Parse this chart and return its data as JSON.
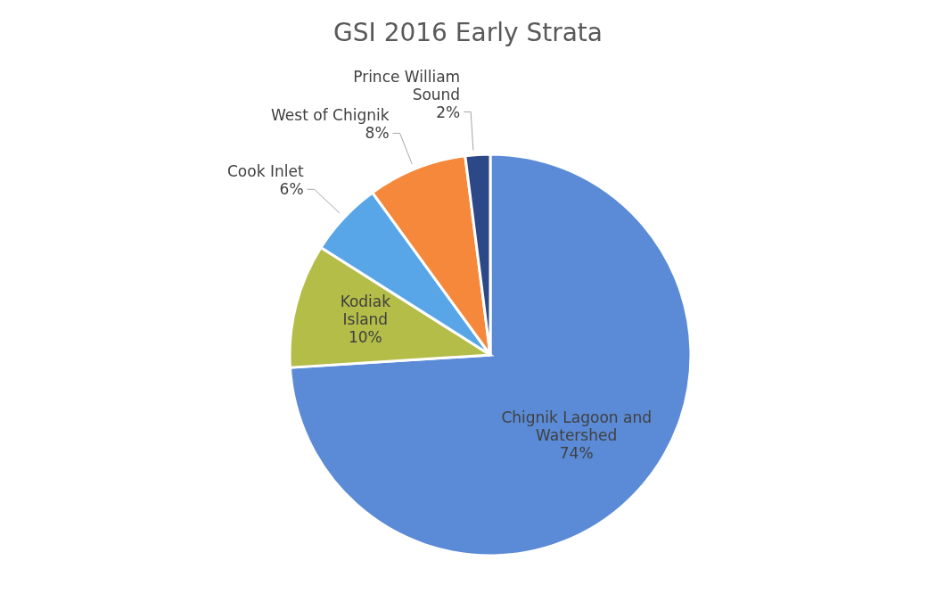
{
  "chart_data": {
    "type": "pie",
    "title": "GSI 2016 Early Strata",
    "categories": [
      "Chignik Lagoon and Watershed",
      "Kodiak Island",
      "Cook Inlet",
      "West of Chignik",
      "Prince William Sound"
    ],
    "values": [
      74,
      10,
      6,
      8,
      2
    ],
    "colors": [
      "#5b8bd6",
      "#b3bd47",
      "#58a6e8",
      "#f5883a",
      "#2c4886"
    ],
    "value_labels": [
      "74%",
      "10%",
      "6%",
      "8%",
      "2%"
    ],
    "legend": false
  }
}
